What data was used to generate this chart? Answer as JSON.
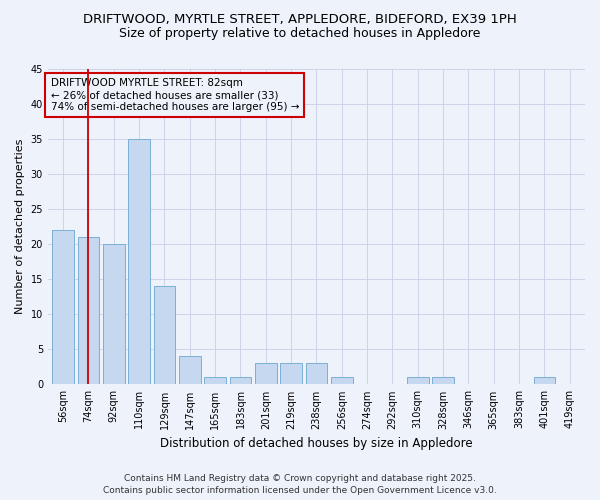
{
  "title1": "DRIFTWOOD, MYRTLE STREET, APPLEDORE, BIDEFORD, EX39 1PH",
  "title2": "Size of property relative to detached houses in Appledore",
  "xlabel": "Distribution of detached houses by size in Appledore",
  "ylabel": "Number of detached properties",
  "categories": [
    "56sqm",
    "74sqm",
    "92sqm",
    "110sqm",
    "129sqm",
    "147sqm",
    "165sqm",
    "183sqm",
    "201sqm",
    "219sqm",
    "238sqm",
    "256sqm",
    "274sqm",
    "292sqm",
    "310sqm",
    "328sqm",
    "346sqm",
    "365sqm",
    "383sqm",
    "401sqm",
    "419sqm"
  ],
  "values": [
    22,
    21,
    20,
    35,
    14,
    4,
    1,
    1,
    3,
    3,
    3,
    1,
    0,
    0,
    1,
    1,
    0,
    0,
    0,
    1,
    0
  ],
  "bar_color": "#c5d8f0",
  "bar_edge_color": "#7bafd4",
  "ylim": [
    0,
    45
  ],
  "yticks": [
    0,
    5,
    10,
    15,
    20,
    25,
    30,
    35,
    40,
    45
  ],
  "vline_x": 1,
  "vline_color": "#cc0000",
  "annotation_title": "DRIFTWOOD MYRTLE STREET: 82sqm",
  "annotation_line1": "← 26% of detached houses are smaller (33)",
  "annotation_line2": "74% of semi-detached houses are larger (95) →",
  "annotation_box_color": "#cc0000",
  "footer1": "Contains HM Land Registry data © Crown copyright and database right 2025.",
  "footer2": "Contains public sector information licensed under the Open Government Licence v3.0.",
  "bg_color": "#eef2fb",
  "title_fontsize": 9.5,
  "subtitle_fontsize": 9,
  "ann_fontsize": 7.5,
  "xlabel_fontsize": 8.5,
  "ylabel_fontsize": 8,
  "tick_fontsize": 7,
  "footer_fontsize": 6.5
}
